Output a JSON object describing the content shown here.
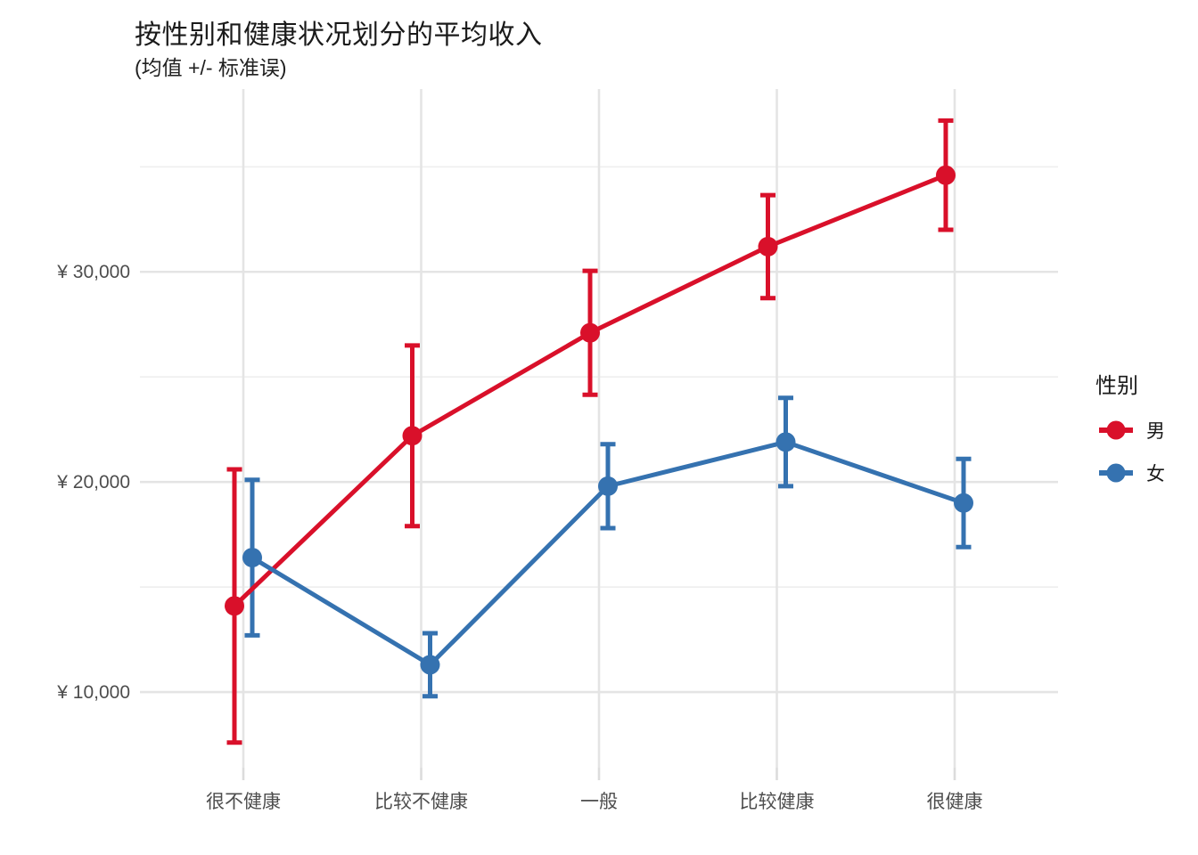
{
  "title": "按性别和健康状况划分的平均收入",
  "subtitle": "(均值 +/- 标准误)",
  "chart_data": {
    "type": "line",
    "error_bars": "mean +/- se",
    "categories": [
      "很不健康",
      "比较不健康",
      "一般",
      "比较健康",
      "很健康"
    ],
    "series": [
      {
        "name": "男",
        "color": "#d9102a",
        "means": [
          14100,
          22200,
          27100,
          31200,
          34600
        ],
        "se": [
          6500,
          4300,
          2950,
          2450,
          2600
        ]
      },
      {
        "name": "女",
        "color": "#3572b0",
        "means": [
          16400,
          11300,
          19800,
          21900,
          19000
        ],
        "se": [
          3700,
          1500,
          2000,
          2100,
          2100
        ]
      }
    ],
    "y_ticks": [
      {
        "value": 10000,
        "label": "¥ 10,000"
      },
      {
        "value": 20000,
        "label": "¥ 20,000"
      },
      {
        "value": 30000,
        "label": "¥ 30,000"
      }
    ],
    "y_minor_ticks": [
      15000,
      25000,
      35000
    ],
    "ylim": [
      6400,
      38700
    ],
    "xlabel": "",
    "ylabel": "",
    "grid": "on",
    "legend": {
      "title": "性别",
      "position": "right"
    }
  }
}
